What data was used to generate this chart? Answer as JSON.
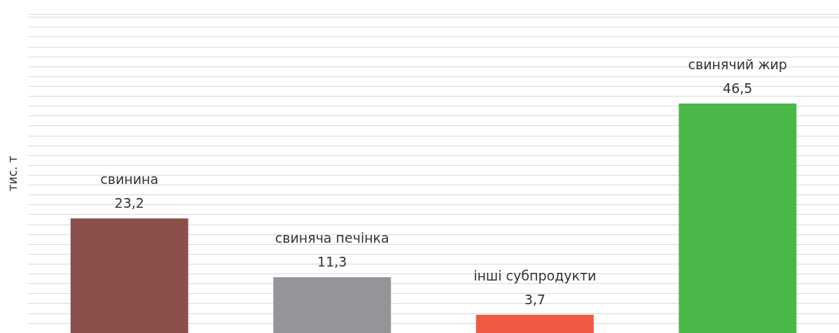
{
  "chart_data": {
    "type": "bar",
    "ylabel": "тис. т",
    "categories": [
      "свинина",
      "свиняча печінка",
      "інші субпродукти",
      "свинячий жир"
    ],
    "values": [
      23.2,
      11.3,
      3.7,
      46.5
    ],
    "colors": [
      "#8b4f4b",
      "#939598",
      "#ef5a45",
      "#4bb749"
    ],
    "value_labels": [
      "23,2",
      "11,3",
      "3,7",
      "46,5"
    ],
    "grid": "y",
    "tick_labels": false
  }
}
